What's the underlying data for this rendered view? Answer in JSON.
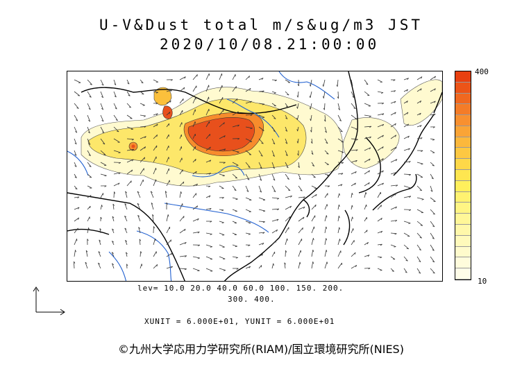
{
  "title_line1": "U-V&Dust total m/s&ug/m3 JST",
  "title_line2": "2020/10/08.21:00:00",
  "colorbar": {
    "max_label": "400",
    "min_label": "10",
    "colors": [
      "#e84010",
      "#ec5418",
      "#f06820",
      "#f47c28",
      "#f89030",
      "#faa436",
      "#fcb83c",
      "#fdc842",
      "#fed848",
      "#fee650",
      "#ffef5c",
      "#fff270",
      "#fff584",
      "#fff798",
      "#fff8aa",
      "#fffabb",
      "#fffbcc",
      "#fffcdc",
      "#fffde8"
    ]
  },
  "legend": {
    "lev_line1": "lev= 10.0 20.0 40.0 60.0 100. 150. 200.",
    "lev_line2": "300. 400."
  },
  "units_text": "XUNIT = 6.000E+01, YUNIT = 6.000E+01",
  "credit": "©九州大学応用力学研究所(RIAM)/国立環境研究所(NIES)",
  "map_colors": {
    "coast": "#000000",
    "river": "#1f5fd0",
    "dust_high": "#e8501c",
    "dust_low": "#fffbd0"
  }
}
